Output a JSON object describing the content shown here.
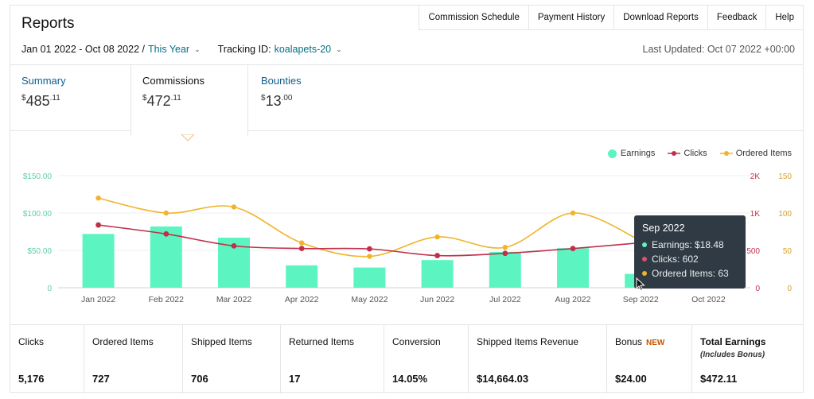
{
  "header": {
    "title": "Reports",
    "nav": [
      "Commission Schedule",
      "Payment History",
      "Download Reports",
      "Feedback",
      "Help"
    ]
  },
  "filters": {
    "date_range": "Jan 01 2022 - Oct 08 2022 /",
    "date_preset": "This Year",
    "tracking_label": "Tracking ID:",
    "tracking_id": "koalapets-20",
    "last_updated": "Last Updated: Oct 07 2022 +00:00"
  },
  "tabs": [
    {
      "label": "Summary",
      "currency": "$",
      "whole": "485",
      "cents": ".11"
    },
    {
      "label": "Commissions",
      "currency": "$",
      "whole": "472",
      "cents": ".11"
    },
    {
      "label": "Bounties",
      "currency": "$",
      "whole": "13",
      "cents": ".00"
    }
  ],
  "legend": {
    "earnings": "Earnings",
    "clicks": "Clicks",
    "ordered": "Ordered Items"
  },
  "colors": {
    "earnings": "#5cf5c2",
    "clicks": "#c0304a",
    "ordered": "#f0b429"
  },
  "chart_data": {
    "type": "bar",
    "categories": [
      "Jan 2022",
      "Feb 2022",
      "Mar 2022",
      "Apr 2022",
      "May 2022",
      "Jun 2022",
      "Jul 2022",
      "Aug 2022",
      "Sep 2022",
      "Oct 2022"
    ],
    "y_left": {
      "ticks": [
        "0",
        "$50.00",
        "$100.00",
        "$150.00"
      ],
      "range": [
        0,
        150
      ]
    },
    "y_clicks": {
      "ticks": [
        "0",
        "500",
        "1K",
        "2K"
      ]
    },
    "y_ordered": {
      "ticks": [
        "0",
        "50",
        "100",
        "150"
      ],
      "range": [
        0,
        150
      ]
    },
    "series": [
      {
        "name": "Earnings",
        "values": [
          72,
          82,
          67,
          30,
          27,
          37,
          48,
          53,
          18.48,
          0
        ]
      },
      {
        "name": "Clicks",
        "values": [
          840,
          720,
          560,
          525,
          520,
          430,
          460,
          525,
          602,
          0
        ]
      },
      {
        "name": "Ordered Items",
        "values": [
          120,
          100,
          108,
          60,
          42,
          68,
          54,
          100,
          63,
          0
        ]
      }
    ]
  },
  "tooltip": {
    "title": "Sep 2022",
    "earnings": "Earnings: $18.48",
    "clicks": "Clicks: 602",
    "ordered": "Ordered Items: 63"
  },
  "metrics": [
    {
      "label": "Clicks",
      "value": "5,176"
    },
    {
      "label": "Ordered Items",
      "value": "727"
    },
    {
      "label": "Shipped Items",
      "value": "706"
    },
    {
      "label": "Returned Items",
      "value": "17"
    },
    {
      "label": "Conversion",
      "value": "14.05%"
    },
    {
      "label": "Shipped Items Revenue",
      "value": "$14,664.03"
    },
    {
      "label": "Bonus",
      "badge": "NEW",
      "value": "$24.00"
    },
    {
      "label": "Total Earnings",
      "sub": "(Includes Bonus)",
      "value": "$472.11"
    }
  ]
}
